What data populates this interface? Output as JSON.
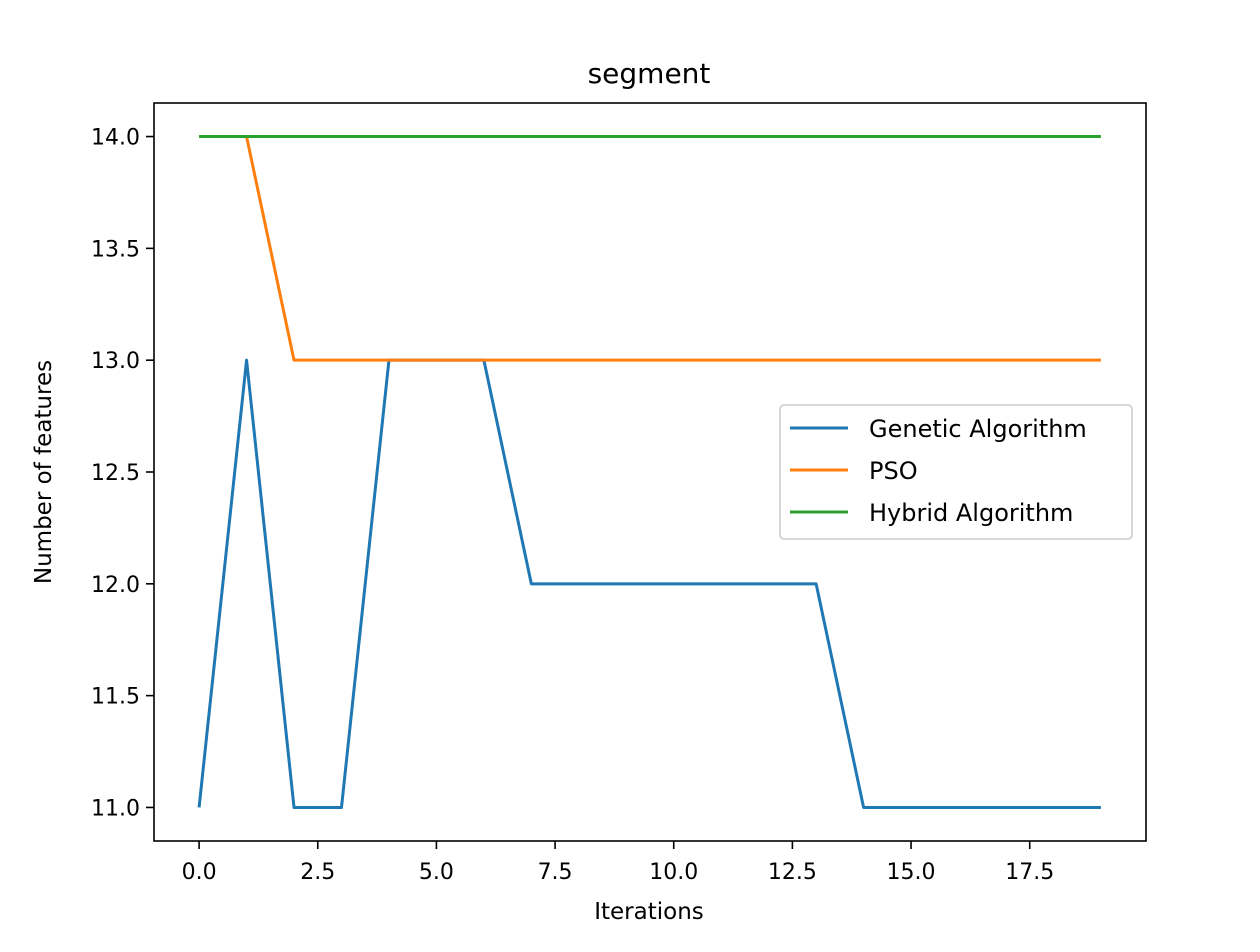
{
  "chart_data": {
    "type": "line",
    "title": "segment",
    "xlabel": "Iterations",
    "ylabel": "Number of features",
    "xlim": [
      -0.95,
      19.95
    ],
    "ylim": [
      10.85,
      14.15
    ],
    "xticks": [
      0.0,
      2.5,
      5.0,
      7.5,
      10.0,
      12.5,
      15.0,
      17.5
    ],
    "xtick_labels": [
      "0.0",
      "2.5",
      "5.0",
      "7.5",
      "10.0",
      "12.5",
      "15.0",
      "17.5"
    ],
    "yticks": [
      11.0,
      11.5,
      12.0,
      12.5,
      13.0,
      13.5,
      14.0
    ],
    "ytick_labels": [
      "11.0",
      "11.5",
      "12.0",
      "12.5",
      "13.0",
      "13.5",
      "14.0"
    ],
    "grid": false,
    "legend_position": "center-right",
    "x": [
      0,
      1,
      2,
      3,
      4,
      5,
      6,
      7,
      8,
      9,
      10,
      11,
      12,
      13,
      14,
      15,
      16,
      17,
      18,
      19
    ],
    "series": [
      {
        "name": "Genetic Algorithm",
        "color": "#1f77b4",
        "values": [
          11,
          13,
          11,
          11,
          13,
          13,
          13,
          12,
          12,
          12,
          12,
          12,
          12,
          12,
          11,
          11,
          11,
          11,
          11,
          11
        ]
      },
      {
        "name": "PSO",
        "color": "#ff7f0e",
        "values": [
          14,
          14,
          13,
          13,
          13,
          13,
          13,
          13,
          13,
          13,
          13,
          13,
          13,
          13,
          13,
          13,
          13,
          13,
          13,
          13
        ]
      },
      {
        "name": "Hybrid Algorithm",
        "color": "#2ca02c",
        "values": [
          14,
          14,
          14,
          14,
          14,
          14,
          14,
          14,
          14,
          14,
          14,
          14,
          14,
          14,
          14,
          14,
          14,
          14,
          14,
          14
        ]
      }
    ]
  }
}
